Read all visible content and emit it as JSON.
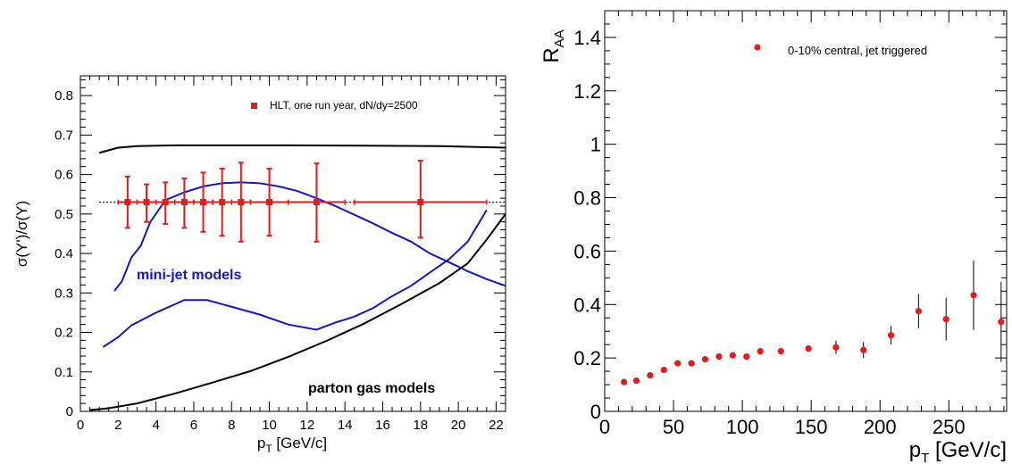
{
  "chart_data": [
    {
      "type": "line",
      "xlabel_main": "p",
      "xlabel_sub": "T",
      "xlabel_rest": " [GeV/c]",
      "ylabel": "σ(Υ')/σ(Υ)",
      "xlim": [
        0,
        22.5
      ],
      "ylim": [
        0,
        0.85
      ],
      "x_ticks": [
        0,
        2,
        4,
        6,
        8,
        10,
        12,
        14,
        16,
        18,
        20,
        22
      ],
      "y_ticks": [
        0,
        0.1,
        0.2,
        0.3,
        0.4,
        0.5,
        0.6,
        0.7,
        0.8
      ],
      "grid": false,
      "reference_line": {
        "y": 0.53,
        "style": "dotted"
      },
      "legend": {
        "position": "top-right",
        "label": "HLT, one run year, dN/dy=2500",
        "marker": "square",
        "color": "#e8191b"
      },
      "annotations": [
        {
          "text": "mini-jet models",
          "x": 2.3,
          "y": 0.305,
          "color": "#1414d2"
        },
        {
          "text": "parton gas models",
          "x": 12.0,
          "y": 0.05,
          "color": "#000000"
        }
      ],
      "series": [
        {
          "color": "#000000",
          "x": [
            1.0,
            2.0,
            3.0,
            5.0,
            8.0,
            11.0,
            15.0,
            19.0,
            22.5
          ],
          "y": [
            0.655,
            0.668,
            0.672,
            0.674,
            0.674,
            0.674,
            0.673,
            0.672,
            0.668
          ]
        },
        {
          "color": "#000000",
          "x": [
            0.5,
            1.5,
            3.0,
            5.0,
            7.0,
            9.0,
            11.0,
            13.0,
            15.0,
            17.0,
            19.0,
            20.5,
            21.5,
            22.5
          ],
          "y": [
            0.003,
            0.008,
            0.02,
            0.045,
            0.073,
            0.102,
            0.138,
            0.178,
            0.222,
            0.272,
            0.325,
            0.375,
            0.435,
            0.5
          ]
        },
        {
          "color": "#1414d2",
          "x": [
            1.8,
            2.2,
            2.7,
            3.2,
            3.7,
            4.5,
            5.5,
            6.5,
            7.5,
            8.5,
            9.5,
            10.5,
            11.5,
            12.5,
            13.5,
            14.5,
            15.5,
            16.5,
            17.5,
            18.5,
            19.5,
            20.5,
            21.5,
            22.5
          ],
          "y": [
            0.305,
            0.33,
            0.39,
            0.42,
            0.48,
            0.535,
            0.555,
            0.57,
            0.578,
            0.58,
            0.578,
            0.57,
            0.558,
            0.54,
            0.52,
            0.498,
            0.476,
            0.452,
            0.43,
            0.4,
            0.378,
            0.355,
            0.335,
            0.318
          ]
        },
        {
          "color": "#1414d2",
          "x": [
            1.2,
            2.0,
            2.7,
            4.0,
            5.5,
            6.7,
            8.0,
            9.5,
            11.0,
            12.5,
            13.5,
            14.5,
            15.5,
            16.5,
            17.5,
            18.5,
            19.5,
            20.5,
            21.5
          ],
          "y": [
            0.163,
            0.188,
            0.218,
            0.25,
            0.282,
            0.282,
            0.265,
            0.245,
            0.22,
            0.207,
            0.225,
            0.24,
            0.262,
            0.292,
            0.318,
            0.352,
            0.385,
            0.43,
            0.51
          ]
        }
      ],
      "points": [
        {
          "x": 2.5,
          "y": 0.53,
          "xlo": 2.0,
          "xhi": 3.0,
          "ylo": 0.465,
          "yhi": 0.595
        },
        {
          "x": 3.5,
          "y": 0.53,
          "xlo": 3.0,
          "xhi": 4.0,
          "ylo": 0.48,
          "yhi": 0.575
        },
        {
          "x": 4.5,
          "y": 0.53,
          "xlo": 4.0,
          "xhi": 5.0,
          "ylo": 0.475,
          "yhi": 0.58
        },
        {
          "x": 5.5,
          "y": 0.53,
          "xlo": 5.0,
          "xhi": 6.0,
          "ylo": 0.465,
          "yhi": 0.59
        },
        {
          "x": 6.5,
          "y": 0.53,
          "xlo": 6.0,
          "xhi": 7.0,
          "ylo": 0.455,
          "yhi": 0.605
        },
        {
          "x": 7.5,
          "y": 0.53,
          "xlo": 7.0,
          "xhi": 8.0,
          "ylo": 0.445,
          "yhi": 0.615
        },
        {
          "x": 8.5,
          "y": 0.53,
          "xlo": 8.0,
          "xhi": 9.0,
          "ylo": 0.43,
          "yhi": 0.63
        },
        {
          "x": 10.0,
          "y": 0.53,
          "xlo": 9.0,
          "xhi": 11.0,
          "ylo": 0.445,
          "yhi": 0.615
        },
        {
          "x": 12.5,
          "y": 0.53,
          "xlo": 11.0,
          "xhi": 14.0,
          "ylo": 0.43,
          "yhi": 0.628
        },
        {
          "x": 18.0,
          "y": 0.53,
          "xlo": 14.5,
          "xhi": 21.5,
          "ylo": 0.44,
          "yhi": 0.635
        }
      ]
    },
    {
      "type": "scatter",
      "xlabel_main": "p",
      "xlabel_sub": "T",
      "xlabel_rest": " [GeV/c]",
      "ylabel_main": "R",
      "ylabel_sub": "AA",
      "xlim": [
        0,
        292
      ],
      "ylim": [
        0,
        1.5
      ],
      "x_ticks": [
        0,
        50,
        100,
        150,
        200,
        250
      ],
      "y_ticks": [
        0,
        0.2,
        0.4,
        0.6,
        0.8,
        1,
        1.2,
        1.4
      ],
      "grid": false,
      "legend": {
        "position": "top-right",
        "label": "0-10% central, jet triggered",
        "marker": "circle",
        "color": "#e8191b"
      },
      "series": [
        {
          "name": "0-10% central, jet triggered",
          "x": [
            14,
            23,
            33,
            43,
            53,
            63,
            73,
            83,
            93,
            103,
            113,
            128,
            148,
            168,
            188,
            208,
            228,
            248,
            268,
            288
          ],
          "y": [
            0.11,
            0.115,
            0.135,
            0.155,
            0.18,
            0.18,
            0.195,
            0.205,
            0.21,
            0.205,
            0.225,
            0.225,
            0.235,
            0.24,
            0.23,
            0.285,
            0.375,
            0.345,
            0.435,
            0.335
          ],
          "err": [
            0,
            0,
            0,
            0,
            0,
            0,
            0,
            0,
            0,
            0,
            0,
            0,
            0.012,
            0.025,
            0.03,
            0.035,
            0.065,
            0.08,
            0.13,
            0.15
          ]
        }
      ]
    }
  ]
}
